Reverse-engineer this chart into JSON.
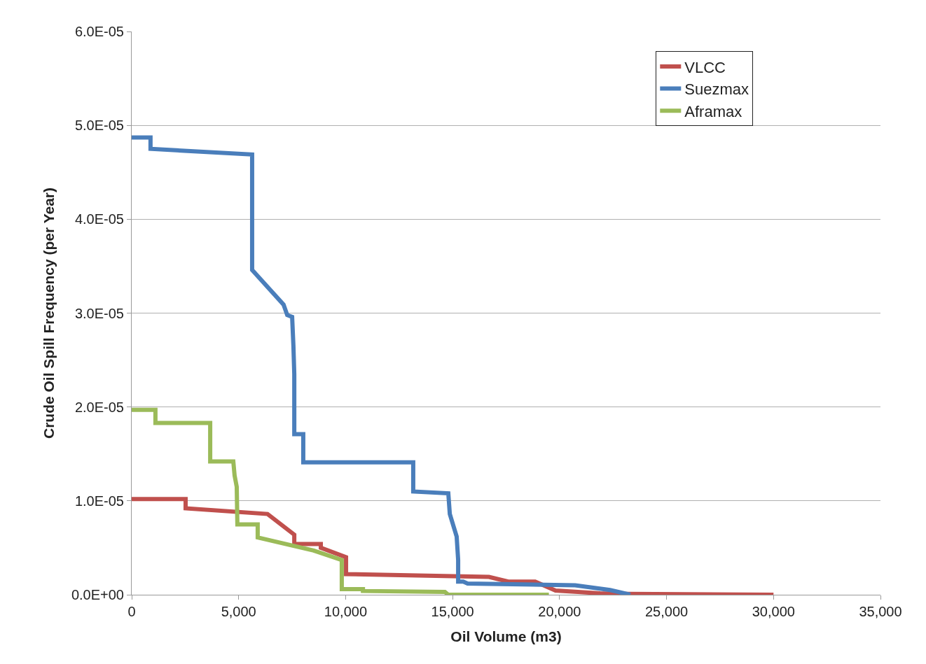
{
  "chart_data": {
    "type": "line",
    "xlabel": "Oil Volume (m3)",
    "ylabel": "Crude Oil Spill Frequency (per Year)",
    "xlim": [
      0,
      35000
    ],
    "xticks": [
      {
        "value": 0,
        "label": "0"
      },
      {
        "value": 5000,
        "label": "5,000"
      },
      {
        "value": 10000,
        "label": "10,000"
      },
      {
        "value": 15000,
        "label": "15,000"
      },
      {
        "value": 20000,
        "label": "20,000"
      },
      {
        "value": 25000,
        "label": "25,000"
      },
      {
        "value": 30000,
        "label": "30,000"
      },
      {
        "value": 35000,
        "label": "35,000"
      }
    ],
    "ylim": [
      0,
      6e-05
    ],
    "yticks": [
      {
        "value": 0,
        "label": "0.0E+00"
      },
      {
        "value": 1e-05,
        "label": "1.0E-05"
      },
      {
        "value": 2e-05,
        "label": "2.0E-05"
      },
      {
        "value": 3e-05,
        "label": "3.0E-05"
      },
      {
        "value": 4e-05,
        "label": "4.0E-05"
      },
      {
        "value": 5e-05,
        "label": "5.0E-05"
      },
      {
        "value": 6e-05,
        "label": "6.0E-05"
      }
    ],
    "grid": "y",
    "legend": "top right",
    "marker": "none",
    "line_style": "solid",
    "series": [
      {
        "name": "VLCC",
        "color": "#c0504d",
        "x": [
          0,
          2520,
          2520,
          6350,
          7600,
          7600,
          8840,
          8840,
          10020,
          10020,
          16700,
          17600,
          18860,
          19810,
          21900,
          23080,
          30000
        ],
        "values": [
          1.02e-05,
          1.02e-05,
          9.2e-06,
          8.6e-06,
          6.4e-06,
          5.4e-06,
          5.4e-06,
          5e-06,
          4e-06,
          2.2e-06,
          1.9e-06,
          1.4e-06,
          1.4e-06,
          4.5e-07,
          1.5e-07,
          1e-07,
          0
        ]
      },
      {
        "name": "Suezmax",
        "color": "#4a7ebb",
        "x": [
          0,
          880,
          880,
          5630,
          5630,
          7100,
          7270,
          7500,
          7560,
          7600,
          7600,
          8020,
          8020,
          13160,
          13160,
          14800,
          14870,
          15190,
          15260,
          15260,
          15500,
          15700,
          20730,
          22360,
          23310
        ],
        "values": [
          4.87e-05,
          4.87e-05,
          4.75e-05,
          4.69e-05,
          3.46e-05,
          3.09e-05,
          2.98e-05,
          2.96e-05,
          2.65e-05,
          2.35e-05,
          1.71e-05,
          1.71e-05,
          1.41e-05,
          1.41e-05,
          1.1e-05,
          1.08e-05,
          8.6e-06,
          6.2e-06,
          3.7e-06,
          1.4e-06,
          1.4e-06,
          1.2e-06,
          1e-06,
          5e-07,
          0
        ]
      },
      {
        "name": "Aframax",
        "color": "#9bbb59",
        "x": [
          0,
          1110,
          1110,
          3670,
          3670,
          4750,
          4810,
          4910,
          4940,
          5890,
          5890,
          8510,
          9820,
          9820,
          10810,
          10810,
          14640,
          14800,
          19500
        ],
        "values": [
          1.97e-05,
          1.97e-05,
          1.83e-05,
          1.83e-05,
          1.42e-05,
          1.42e-05,
          1.27e-05,
          1.15e-05,
          7.5e-06,
          7.5e-06,
          6.1e-06,
          4.7e-06,
          3.7e-06,
          6e-07,
          6e-07,
          4e-07,
          3e-07,
          0,
          0
        ]
      }
    ]
  }
}
